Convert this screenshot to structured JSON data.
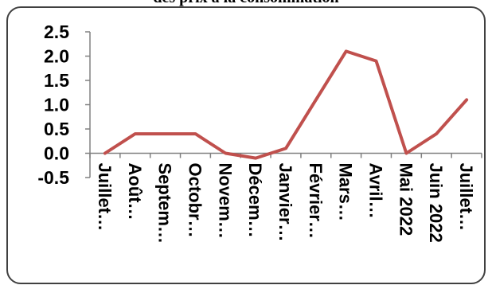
{
  "chart_data": {
    "type": "line",
    "title": "des prix à la consommation",
    "xlabel": "",
    "ylabel": "",
    "categories": [
      "Juillet…",
      "Août…",
      "Septem…",
      "Octobr…",
      "Novem…",
      "Décem…",
      "Janvier…",
      "Février…",
      "Mars…",
      "Avril…",
      "Mai 2022",
      "Juin 2022",
      "Juillet…"
    ],
    "series": [
      {
        "values": [
          0.0,
          0.4,
          0.4,
          0.4,
          0.0,
          -0.1,
          0.1,
          1.1,
          2.1,
          1.9,
          0.0,
          0.4,
          1.1
        ]
      }
    ],
    "ylim": [
      -0.5,
      2.5
    ],
    "yticks": [
      "-0.5",
      "0.0",
      "0.5",
      "1.0",
      "1.5",
      "2.0",
      "2.5"
    ],
    "grid": false,
    "legend": "none",
    "line_color": "#c0504d"
  }
}
